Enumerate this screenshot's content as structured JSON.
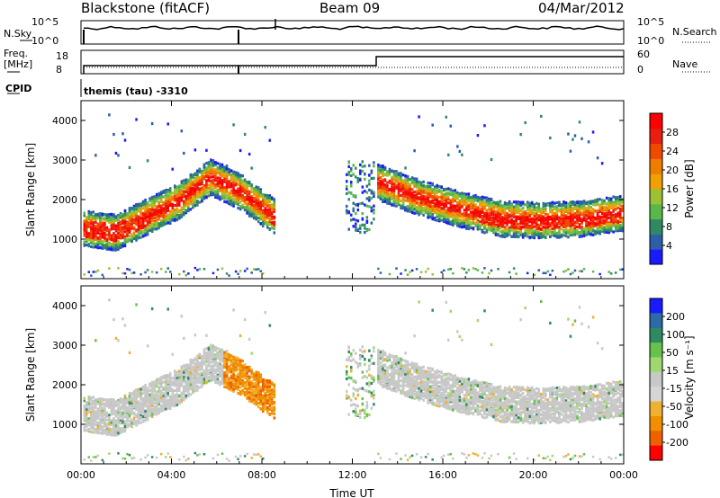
{
  "header": {
    "radar": "Blackstone (fitACF)",
    "beam": "Beam 09",
    "date": "04/Mar/2012"
  },
  "strip_labels": {
    "nsky": "N.Sky",
    "nsearch": "N.Search",
    "freq_line1": "Freq.",
    "freq_line2": "[MHz]",
    "nave": "Nave",
    "cpid": "CPID",
    "noise_top_left": "10^5",
    "noise_bottom_left": "10^0",
    "noise_top_right": "10^5",
    "noise_bottom_right": "10^0",
    "freq_top_left": "18",
    "freq_bottom_left": "8",
    "nave_top_right": "60",
    "nave_bottom_right": "0",
    "cpid_text": "themis (tau)  -3310"
  },
  "chart_data": [
    {
      "type": "heatmap",
      "name": "power-panel",
      "ylabel": "Slant Range [km]",
      "ylim": [
        0,
        4500
      ],
      "y_ticks": [
        1000,
        2000,
        3000,
        4000
      ],
      "xlim_hours": [
        0,
        24
      ],
      "x_tick_labels": [
        "00:00",
        "04:00",
        "08:00",
        "12:00",
        "16:00",
        "20:00",
        "00:00"
      ],
      "colorbar": {
        "label": "Power [dB]",
        "ticks": [
          "4",
          "8",
          "12",
          "16",
          "20",
          "24",
          "28"
        ],
        "colors": [
          "#1a1aff",
          "#2d5fa8",
          "#2f8a64",
          "#5ab84a",
          "#9bc234",
          "#f0a000",
          "#f07c00",
          "#f04a00",
          "#e81e10",
          "#ff0000"
        ]
      },
      "echo_regions": [
        {
          "label": "early bands",
          "t_start": 0.1,
          "t_end": 8.5,
          "range_center_km": [
            1300,
            1200,
            1600,
            2000,
            2600,
            2200,
            1600
          ],
          "spread_km": 500
        },
        {
          "label": "post-noon band",
          "t_start": 13.0,
          "t_end": 24.0,
          "range_center_km": [
            2500,
            2100,
            1800,
            1550,
            1500,
            1550,
            1700
          ],
          "spread_km": 500
        }
      ]
    },
    {
      "type": "heatmap",
      "name": "velocity-panel",
      "ylabel": "Slant Range [km]",
      "ylim": [
        0,
        4500
      ],
      "y_ticks": [
        1000,
        2000,
        3000,
        4000
      ],
      "xlim_hours": [
        0,
        24
      ],
      "x_tick_labels": [
        "00:00",
        "04:00",
        "08:00",
        "12:00",
        "16:00",
        "20:00",
        "00:00"
      ],
      "xlabel": "Time UT",
      "colorbar": {
        "label": "Velocity [m s⁻¹]",
        "ticks": [
          "200",
          "100",
          "50",
          "15",
          "-15",
          "-50",
          "-100",
          "-200"
        ],
        "colors": [
          "#1a1aff",
          "#2d6aa8",
          "#2f8a64",
          "#66c24a",
          "#a0d870",
          "#c8c8c8",
          "#d6d6d6",
          "#f0b030",
          "#f09000",
          "#f06000",
          "#ff0000"
        ]
      }
    }
  ]
}
